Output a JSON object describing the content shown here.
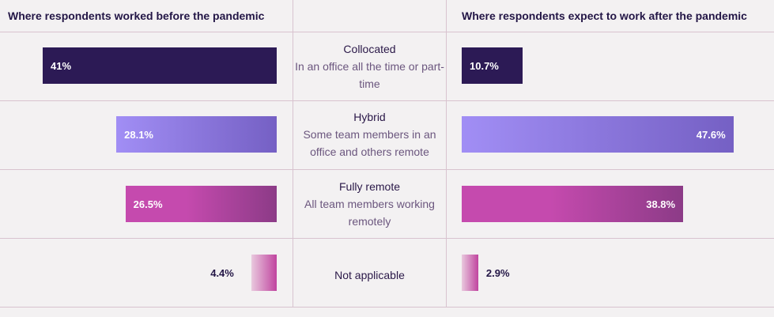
{
  "chart_data": {
    "type": "bar",
    "panels": [
      {
        "id": "before",
        "title": "Where respondents worked before the pandemic"
      },
      {
        "id": "after",
        "title": "Where respondents expect to work after the pandemic"
      }
    ],
    "categories": [
      {
        "name": "Collocated",
        "description": "In an office all the time or part-time"
      },
      {
        "name": "Hybrid",
        "description": "Some team members in an office and others remote"
      },
      {
        "name": "Fully remote",
        "description": "All team members working remotely"
      },
      {
        "name": "Not applicable",
        "description": ""
      }
    ],
    "series": [
      {
        "panel": "before",
        "values": [
          41,
          28.1,
          26.5,
          4.4
        ],
        "labels": [
          "41%",
          "28.1%",
          "26.5%",
          "4.4%"
        ]
      },
      {
        "panel": "after",
        "values": [
          10.7,
          47.6,
          38.8,
          2.9
        ],
        "labels": [
          "10.7%",
          "47.6%",
          "38.8%",
          "2.9%"
        ]
      }
    ],
    "colors": {
      "collocated": "#2c1a55",
      "hybrid_start": "#a18ef5",
      "hybrid_end": "#7560c4",
      "remote_start": "#c54aae",
      "remote_end": "#8c3b87",
      "na_start": "#e9c9de",
      "na_end": "#c0449f",
      "dark_text": "#231646",
      "light_text": "#ffffff"
    }
  }
}
